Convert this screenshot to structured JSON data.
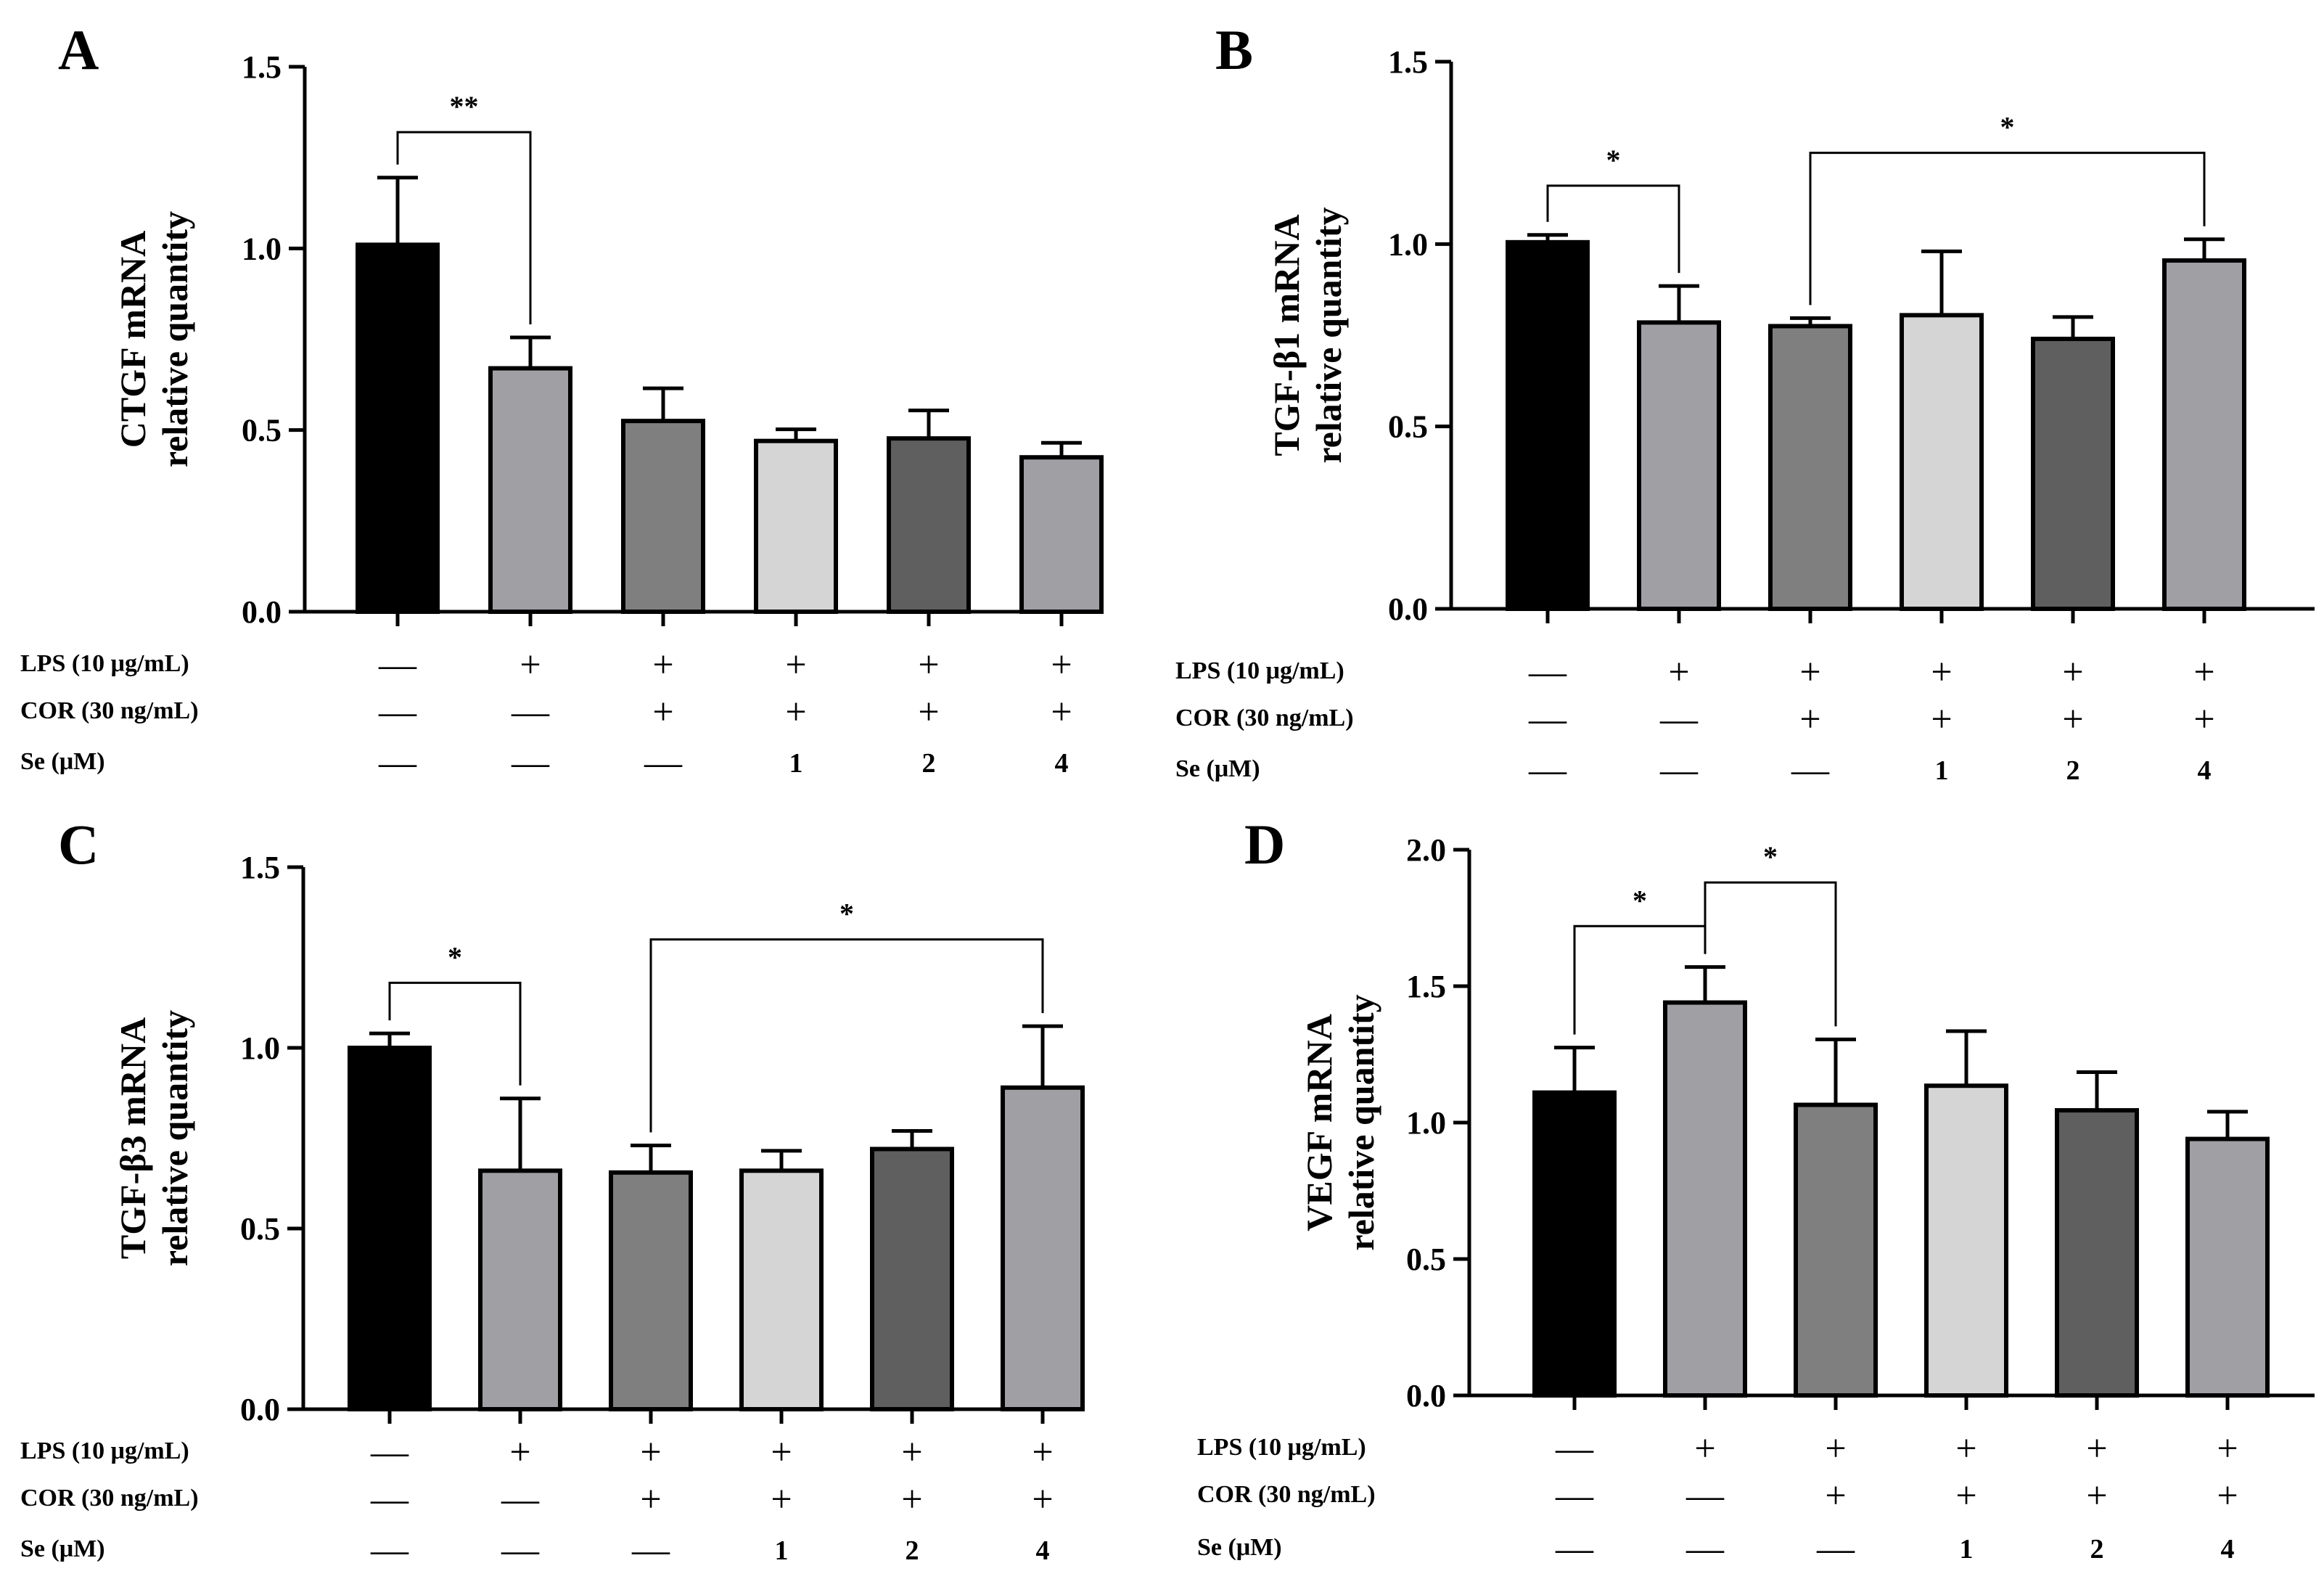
{
  "figure": {
    "conditions": {
      "labels": [
        "LPS (10 μg/mL)",
        "COR (30 ng/mL)",
        "Se  (μM)"
      ],
      "rows": [
        [
          "—",
          "+",
          "+",
          "+",
          "+",
          "+"
        ],
        [
          "—",
          "—",
          "+",
          "+",
          "+",
          "+"
        ],
        [
          "—",
          "—",
          "—",
          "1",
          "2",
          "4"
        ]
      ]
    },
    "colors": {
      "bars": [
        "#000000",
        "#a09fa4",
        "#7f7f7f",
        "#d5d5d5",
        "#5f5f5f",
        "#a09fa4"
      ],
      "axis": "#000000"
    }
  },
  "chart_data": [
    {
      "panel": "A",
      "type": "bar",
      "title": "",
      "ylabel": [
        "CTGF mRNA",
        "relative quantity"
      ],
      "ylim": [
        0,
        1.5
      ],
      "yticks": [
        "0.0",
        "0.5",
        "1.0",
        "1.5"
      ],
      "values": [
        1.01,
        0.67,
        0.525,
        0.47,
        0.477,
        0.425
      ],
      "errors": [
        0.185,
        0.085,
        0.09,
        0.032,
        0.077,
        0.04
      ],
      "significance": [
        {
          "from": 0,
          "to": 1,
          "label": "**",
          "level": 1.32
        }
      ]
    },
    {
      "panel": "B",
      "type": "bar",
      "title": "",
      "ylabel": [
        "TGF-β1 mRNA",
        "relative quantity"
      ],
      "ylim": [
        0,
        1.5
      ],
      "yticks": [
        "0.0",
        "0.5",
        "1.0",
        "1.5"
      ],
      "values": [
        1.005,
        0.785,
        0.775,
        0.805,
        0.74,
        0.955
      ],
      "errors": [
        0.02,
        0.1,
        0.022,
        0.175,
        0.06,
        0.058
      ],
      "significance": [
        {
          "from": 0,
          "to": 1,
          "label": "*",
          "level": 1.16
        },
        {
          "from": 2,
          "to": 5,
          "label": "*",
          "level": 1.25
        }
      ]
    },
    {
      "panel": "C",
      "type": "bar",
      "title": "",
      "ylabel": [
        "TGF-β3 mRNA",
        "relative quantity"
      ],
      "ylim": [
        0,
        1.5
      ],
      "yticks": [
        "0.0",
        "0.5",
        "1.0",
        "1.5"
      ],
      "values": [
        1.0,
        0.66,
        0.655,
        0.66,
        0.72,
        0.89
      ],
      "errors": [
        0.04,
        0.2,
        0.075,
        0.055,
        0.05,
        0.17
      ],
      "significance": [
        {
          "from": 0,
          "to": 1,
          "label": "*",
          "level": 1.18
        },
        {
          "from": 2,
          "to": 5,
          "label": "*",
          "level": 1.3
        }
      ]
    },
    {
      "panel": "D",
      "type": "bar",
      "title": "",
      "ylabel": [
        "VEGF mRNA",
        "relative quantity"
      ],
      "ylim": [
        0,
        2.0
      ],
      "yticks": [
        "0.0",
        "0.5",
        "1.0",
        "1.5",
        "2.0"
      ],
      "values": [
        1.11,
        1.44,
        1.065,
        1.135,
        1.045,
        0.94
      ],
      "errors": [
        0.165,
        0.13,
        0.24,
        0.2,
        0.14,
        0.1
      ],
      "significance": [
        {
          "from": 0,
          "to": 1,
          "label": "*",
          "level": 1.72
        },
        {
          "from": 1,
          "to": 2,
          "label": "*",
          "level": 1.88
        }
      ]
    }
  ]
}
